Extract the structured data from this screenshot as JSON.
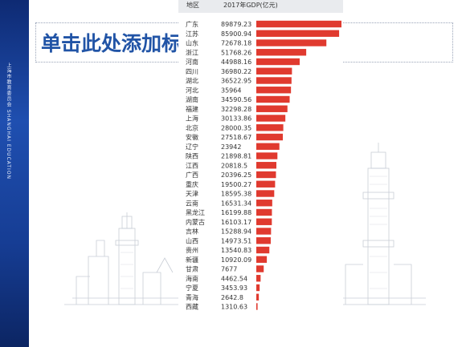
{
  "slide": {
    "title_placeholder": "单击此处添加标",
    "side_text": "上海市教育委员会 SHANGHAI EDUCATION"
  },
  "colors": {
    "band": "#1f4fb0",
    "title": "#2154a6",
    "bar": "#e03a2f"
  },
  "chart_data": {
    "type": "bar",
    "orientation": "horizontal",
    "header": {
      "region": "地区",
      "value": "2017年GDP(亿元)"
    },
    "categories": [
      "广东",
      "江苏",
      "山东",
      "浙江",
      "河南",
      "四川",
      "湖北",
      "河北",
      "湖南",
      "福建",
      "上海",
      "北京",
      "安徽",
      "辽宁",
      "陕西",
      "江西",
      "广西",
      "重庆",
      "天津",
      "云南",
      "黑龙江",
      "内蒙古",
      "吉林",
      "山西",
      "贵州",
      "新疆",
      "甘肃",
      "海南",
      "宁夏",
      "青海",
      "西藏"
    ],
    "value_labels": [
      "89879.23",
      "85900.94",
      "72678.18",
      "51768.26",
      "44988.16",
      "36980.22",
      "36522.95",
      "35964",
      "34590.56",
      "32298.28",
      "30133.86",
      "28000.35",
      "27518.67",
      "23942",
      "21898.81",
      "20818.5",
      "20396.25",
      "19500.27",
      "18595.38",
      "16531.34",
      "16199.88",
      "16103.17",
      "15288.94",
      "14973.51",
      "13540.83",
      "10920.09",
      "7677",
      "4462.54",
      "3453.93",
      "2642.8",
      "1310.63"
    ],
    "values": [
      89879.23,
      85900.94,
      72678.18,
      51768.26,
      44988.16,
      36980.22,
      36522.95,
      35964,
      34590.56,
      32298.28,
      30133.86,
      28000.35,
      27518.67,
      23942,
      21898.81,
      20818.5,
      20396.25,
      19500.27,
      18595.38,
      16531.34,
      16199.88,
      16103.17,
      15288.94,
      14973.51,
      13540.83,
      10920.09,
      7677,
      4462.54,
      3453.93,
      2642.8,
      1310.63
    ],
    "xlim": [
      0,
      90000
    ],
    "grid": false,
    "legend": "none"
  }
}
